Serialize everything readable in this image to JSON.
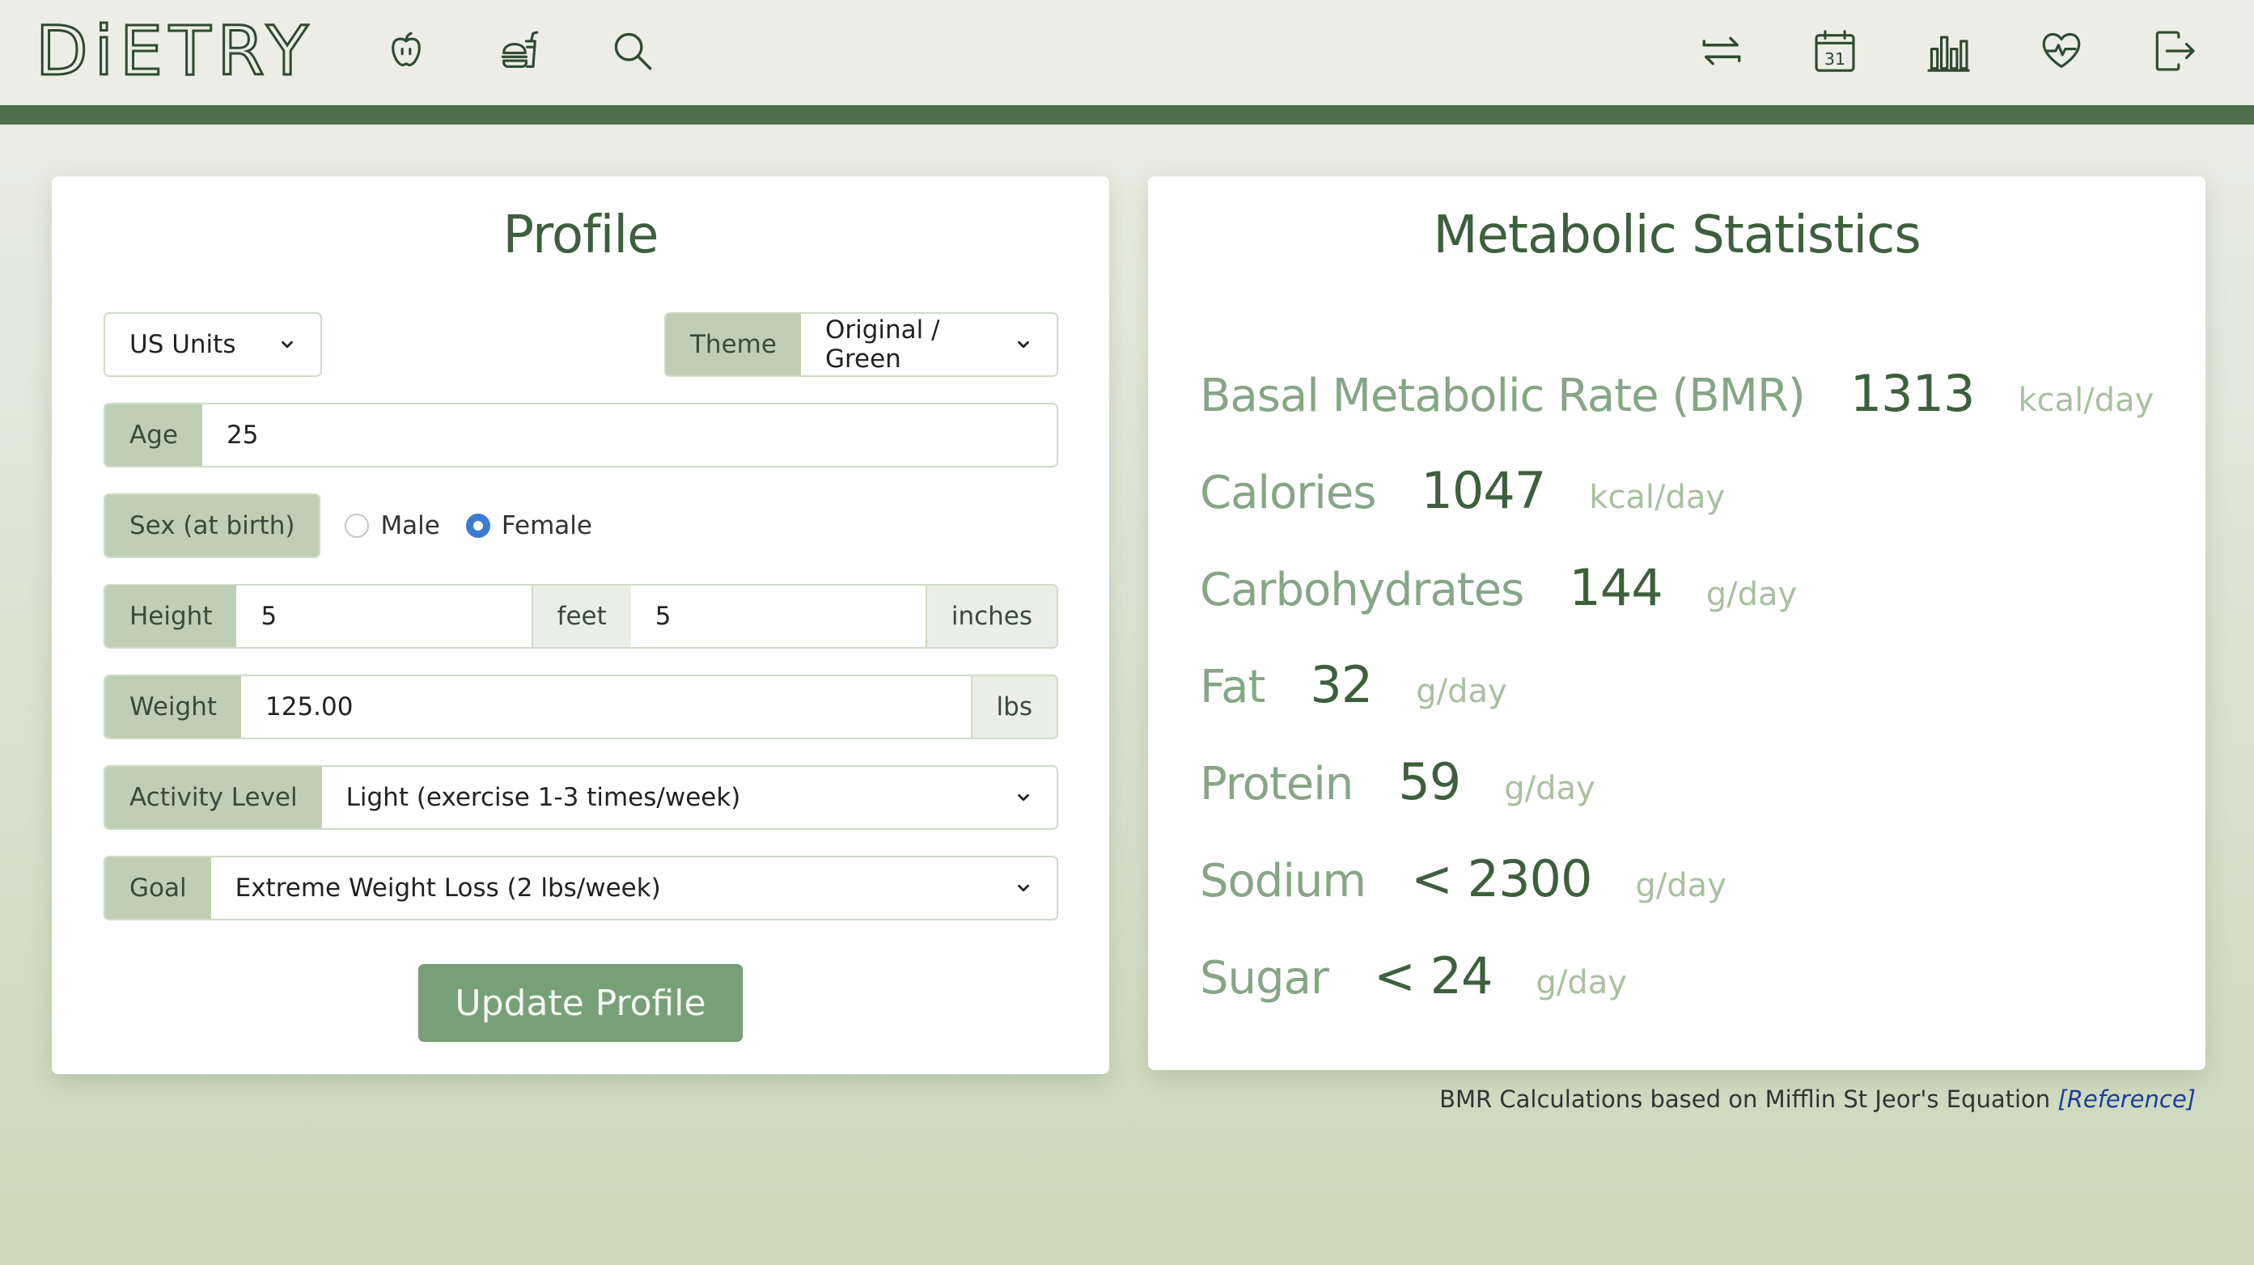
{
  "app": {
    "logo": "DiETRY",
    "colors": {
      "brand_dark": "#4e6e4e",
      "accent": "#78a078",
      "label_bg": "#bfcfb5",
      "title": "#3d5f3d"
    }
  },
  "nav": {
    "left_icons": [
      "apple-icon",
      "burger-drink-icon",
      "search-icon"
    ],
    "right_icons": [
      "swap-icon",
      "calendar-icon",
      "bar-chart-icon",
      "heart-pulse-icon",
      "logout-icon"
    ],
    "calendar_day": "31"
  },
  "profile": {
    "title": "Profile",
    "units": "US Units",
    "theme_label": "Theme",
    "theme_value": "Original / Green",
    "age_label": "Age",
    "age_value": "25",
    "sex_label": "Sex (at birth)",
    "sex_options": [
      "Male",
      "Female"
    ],
    "sex_selected": "Female",
    "height_label": "Height",
    "height_feet": "5",
    "feet_unit": "feet",
    "height_inches": "5",
    "inches_unit": "inches",
    "weight_label": "Weight",
    "weight_value": "125.00",
    "weight_unit": "lbs",
    "activity_label": "Activity Level",
    "activity_value": "Light (exercise 1-3 times/week)",
    "goal_label": "Goal",
    "goal_value": "Extreme Weight Loss (2 lbs/week)",
    "update_button": "Update Profile"
  },
  "stats": {
    "title": "Metabolic Statistics",
    "items": [
      {
        "name": "Basal Metabolic Rate (BMR)",
        "value": "1313",
        "unit": "kcal/day"
      },
      {
        "name": "Calories",
        "value": "1047",
        "unit": "kcal/day"
      },
      {
        "name": "Carbohydrates",
        "value": "144",
        "unit": "g/day"
      },
      {
        "name": "Fat",
        "value": "32",
        "unit": "g/day"
      },
      {
        "name": "Protein",
        "value": "59",
        "unit": "g/day"
      },
      {
        "name": "Sodium",
        "value": "< 2300",
        "unit": "g/day"
      },
      {
        "name": "Sugar",
        "value": "< 24",
        "unit": "g/day"
      }
    ],
    "footnote": "BMR Calculations based on Mifflin St Jeor's Equation",
    "reference_link": "[Reference]"
  }
}
